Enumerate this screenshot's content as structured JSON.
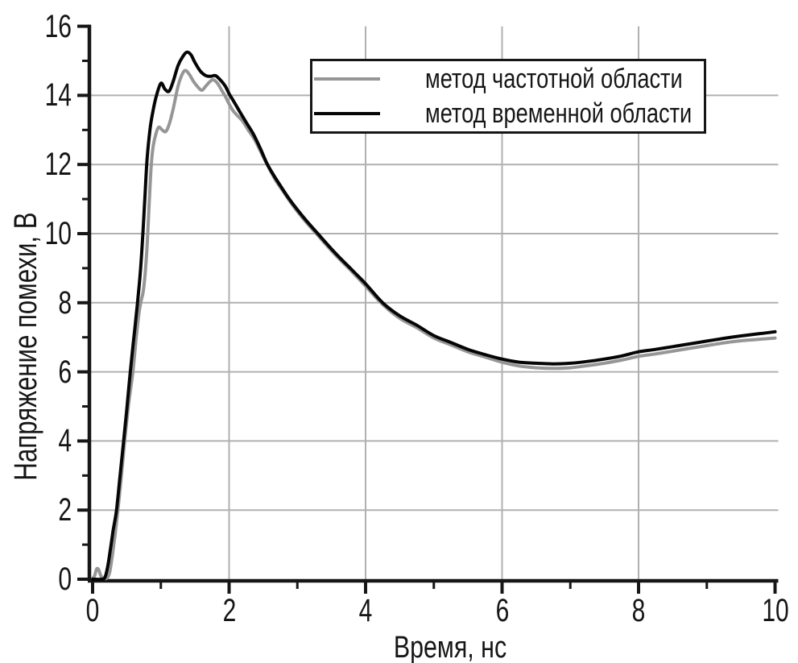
{
  "chart_data": {
    "type": "line",
    "title": "",
    "xlabel": "Время, нс",
    "ylabel": "Напряжение помехи, В",
    "xlim": [
      0,
      10
    ],
    "ylim": [
      0,
      16
    ],
    "xticks": [
      0,
      2,
      4,
      6,
      8,
      10
    ],
    "yticks": [
      0,
      2,
      4,
      6,
      8,
      10,
      12,
      14,
      16
    ],
    "minor_ticks": true,
    "grid": true,
    "grid_color": "#b0b0b0",
    "axis_color": "#161616",
    "legend_position": "top-center-inside",
    "series": [
      {
        "name": "метод частотной области",
        "color": "#969696",
        "points": [
          [
            0.0,
            0.02
          ],
          [
            0.03,
            0.1
          ],
          [
            0.06,
            0.3
          ],
          [
            0.09,
            0.27
          ],
          [
            0.12,
            0.1
          ],
          [
            0.16,
            0.03
          ],
          [
            0.21,
            0.03
          ],
          [
            0.25,
            0.2
          ],
          [
            0.29,
            0.7
          ],
          [
            0.33,
            1.3
          ],
          [
            0.37,
            2.0
          ],
          [
            0.42,
            2.95
          ],
          [
            0.47,
            4.0
          ],
          [
            0.53,
            5.1
          ],
          [
            0.59,
            6.0
          ],
          [
            0.64,
            7.0
          ],
          [
            0.68,
            7.7
          ],
          [
            0.71,
            8.05
          ],
          [
            0.74,
            8.3
          ],
          [
            0.77,
            8.85
          ],
          [
            0.8,
            9.7
          ],
          [
            0.83,
            10.9
          ],
          [
            0.86,
            12.0
          ],
          [
            0.89,
            12.55
          ],
          [
            0.93,
            12.9
          ],
          [
            0.97,
            13.08
          ],
          [
            1.02,
            13.0
          ],
          [
            1.07,
            12.95
          ],
          [
            1.12,
            13.15
          ],
          [
            1.18,
            13.6
          ],
          [
            1.25,
            14.25
          ],
          [
            1.31,
            14.6
          ],
          [
            1.36,
            14.72
          ],
          [
            1.42,
            14.6
          ],
          [
            1.48,
            14.4
          ],
          [
            1.54,
            14.25
          ],
          [
            1.6,
            14.15
          ],
          [
            1.66,
            14.27
          ],
          [
            1.72,
            14.4
          ],
          [
            1.77,
            14.45
          ],
          [
            1.83,
            14.35
          ],
          [
            1.89,
            14.15
          ],
          [
            1.95,
            13.95
          ],
          [
            2.0,
            13.75
          ],
          [
            2.06,
            13.55
          ],
          [
            2.12,
            13.42
          ],
          [
            2.2,
            13.25
          ],
          [
            2.28,
            13.0
          ],
          [
            2.38,
            12.7
          ],
          [
            2.48,
            12.3
          ],
          [
            2.57,
            11.95
          ],
          [
            2.68,
            11.55
          ],
          [
            2.8,
            11.2
          ],
          [
            2.92,
            10.85
          ],
          [
            3.1,
            10.4
          ],
          [
            3.3,
            9.95
          ],
          [
            3.55,
            9.4
          ],
          [
            3.8,
            8.9
          ],
          [
            4.0,
            8.48
          ],
          [
            4.25,
            7.95
          ],
          [
            4.5,
            7.55
          ],
          [
            4.75,
            7.28
          ],
          [
            5.0,
            6.98
          ],
          [
            5.25,
            6.78
          ],
          [
            5.5,
            6.58
          ],
          [
            5.75,
            6.43
          ],
          [
            6.0,
            6.28
          ],
          [
            6.25,
            6.17
          ],
          [
            6.5,
            6.12
          ],
          [
            6.75,
            6.1
          ],
          [
            7.0,
            6.12
          ],
          [
            7.25,
            6.18
          ],
          [
            7.5,
            6.25
          ],
          [
            7.75,
            6.34
          ],
          [
            8.0,
            6.45
          ],
          [
            8.25,
            6.52
          ],
          [
            8.5,
            6.6
          ],
          [
            8.75,
            6.68
          ],
          [
            9.0,
            6.76
          ],
          [
            9.25,
            6.84
          ],
          [
            9.5,
            6.9
          ],
          [
            9.75,
            6.94
          ],
          [
            10.0,
            6.98
          ]
        ]
      },
      {
        "name": "метод временной области",
        "color": "#050505",
        "points": [
          [
            0.0,
            0.0
          ],
          [
            0.13,
            0.0
          ],
          [
            0.18,
            0.05
          ],
          [
            0.22,
            0.35
          ],
          [
            0.26,
            0.85
          ],
          [
            0.3,
            1.4
          ],
          [
            0.35,
            2.0
          ],
          [
            0.4,
            2.95
          ],
          [
            0.45,
            3.9
          ],
          [
            0.5,
            4.9
          ],
          [
            0.55,
            5.95
          ],
          [
            0.6,
            6.9
          ],
          [
            0.65,
            7.85
          ],
          [
            0.7,
            8.9
          ],
          [
            0.74,
            10.1
          ],
          [
            0.77,
            11.2
          ],
          [
            0.8,
            12.2
          ],
          [
            0.84,
            13.0
          ],
          [
            0.88,
            13.5
          ],
          [
            0.93,
            13.95
          ],
          [
            1.0,
            14.35
          ],
          [
            1.06,
            14.18
          ],
          [
            1.12,
            14.12
          ],
          [
            1.18,
            14.4
          ],
          [
            1.25,
            14.85
          ],
          [
            1.32,
            15.12
          ],
          [
            1.38,
            15.25
          ],
          [
            1.44,
            15.18
          ],
          [
            1.5,
            14.95
          ],
          [
            1.58,
            14.7
          ],
          [
            1.66,
            14.57
          ],
          [
            1.73,
            14.55
          ],
          [
            1.8,
            14.57
          ],
          [
            1.87,
            14.45
          ],
          [
            1.94,
            14.28
          ],
          [
            2.0,
            14.05
          ],
          [
            2.07,
            13.82
          ],
          [
            2.15,
            13.55
          ],
          [
            2.25,
            13.22
          ],
          [
            2.35,
            12.9
          ],
          [
            2.45,
            12.5
          ],
          [
            2.55,
            12.05
          ],
          [
            2.65,
            11.7
          ],
          [
            2.78,
            11.3
          ],
          [
            2.9,
            10.95
          ],
          [
            3.1,
            10.45
          ],
          [
            3.3,
            10.0
          ],
          [
            3.55,
            9.45
          ],
          [
            3.8,
            8.95
          ],
          [
            4.0,
            8.55
          ],
          [
            4.25,
            8.0
          ],
          [
            4.5,
            7.62
          ],
          [
            4.75,
            7.35
          ],
          [
            5.0,
            7.05
          ],
          [
            5.25,
            6.85
          ],
          [
            5.5,
            6.65
          ],
          [
            5.75,
            6.5
          ],
          [
            6.0,
            6.37
          ],
          [
            6.25,
            6.28
          ],
          [
            6.5,
            6.25
          ],
          [
            6.75,
            6.23
          ],
          [
            7.0,
            6.25
          ],
          [
            7.25,
            6.3
          ],
          [
            7.5,
            6.37
          ],
          [
            7.75,
            6.46
          ],
          [
            8.0,
            6.58
          ],
          [
            8.25,
            6.65
          ],
          [
            8.5,
            6.73
          ],
          [
            8.75,
            6.81
          ],
          [
            9.0,
            6.89
          ],
          [
            9.25,
            6.97
          ],
          [
            9.5,
            7.04
          ],
          [
            9.75,
            7.1
          ],
          [
            10.0,
            7.16
          ]
        ]
      }
    ]
  }
}
